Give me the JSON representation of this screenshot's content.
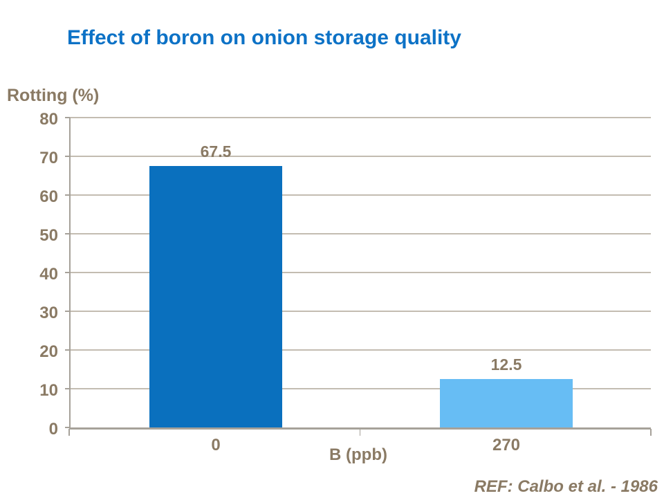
{
  "footer": {
    "ref": "REF: Calbo et al. - 1986"
  },
  "colors": {
    "title_text": "#0d72c6",
    "axis_text": "#8a7a64",
    "gridline": "#c3bcb1",
    "axis_line": "#a6a199",
    "bar_dark_blue": "#0a70be",
    "bar_light_blue": "#67bdf4",
    "background": "#ffffff"
  },
  "chart_data": {
    "type": "bar",
    "title": "Effect of boron on onion storage quality",
    "categories": [
      "0",
      "270"
    ],
    "values": [
      67.5,
      12.5
    ],
    "data_labels": [
      "67.5",
      "12.5"
    ],
    "bar_colors": [
      "#0a70be",
      "#67bdf4"
    ],
    "xlabel": "B (ppb)",
    "ylabel": "Rotting (%)",
    "ylim": [
      0,
      80
    ],
    "yticks": [
      0,
      10,
      20,
      30,
      40,
      50,
      60,
      70,
      80
    ],
    "grid": true,
    "legend": "none"
  }
}
